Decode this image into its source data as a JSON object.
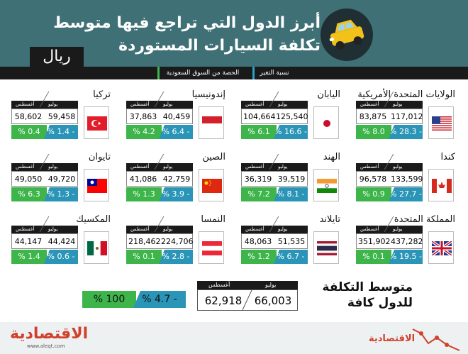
{
  "header": {
    "title_line1": "أبرز الدول التي تراجع فيها متوسط",
    "title_line2": "تكلفة السيارات المستوردة",
    "currency": "ريال"
  },
  "legend": {
    "change": "نسبة التغير",
    "share": "الحصة من السوق السعودية"
  },
  "months": {
    "july": "يوليو",
    "august": "أغسطس"
  },
  "chart_data": {
    "type": "table",
    "columns": [
      "يوليو",
      "أغسطس",
      "نسبة التغير",
      "الحصة من السوق السعودية"
    ],
    "countries": [
      {
        "name": "الولايات المتحدة الأمريكية",
        "flag": "usa",
        "july": "117,012",
        "august": "83,875",
        "change": "- 28.3 %",
        "share": "8.0 %"
      },
      {
        "name": "اليابان",
        "flag": "japan",
        "july": "125,540",
        "august": "104,664",
        "change": "- 16.6 %",
        "share": "6.1 %"
      },
      {
        "name": "إندونيسيا",
        "flag": "indonesia",
        "july": "40,459",
        "august": "37,863",
        "change": "- 6.4 %",
        "share": "4.2 %"
      },
      {
        "name": "تركيا",
        "flag": "turkey",
        "july": "59,458",
        "august": "58,602",
        "change": "- 1.4 %",
        "share": "0.4 %"
      },
      {
        "name": "كندا",
        "flag": "canada",
        "july": "133,599",
        "august": "96,578",
        "change": "- 27.7 %",
        "share": "0.9 %"
      },
      {
        "name": "الهند",
        "flag": "india",
        "july": "39,519",
        "august": "36,319",
        "change": "- 8.1 %",
        "share": "7.2 %"
      },
      {
        "name": "الصين",
        "flag": "china",
        "july": "42,759",
        "august": "41,086",
        "change": "- 3.9 %",
        "share": "1.3 %"
      },
      {
        "name": "تايوان",
        "flag": "taiwan",
        "july": "49,720",
        "august": "49,050",
        "change": "- 1.3 %",
        "share": "6.3 %"
      },
      {
        "name": "المملكة المتحدة",
        "flag": "uk",
        "july": "437,282",
        "august": "351,902",
        "change": "- 19.5 %",
        "share": "0.1 %"
      },
      {
        "name": "تايلاند",
        "flag": "thailand",
        "july": "51,535",
        "august": "48,063",
        "change": "- 6.7 %",
        "share": "1.2 %"
      },
      {
        "name": "النمسا",
        "flag": "austria",
        "july": "224,706",
        "august": "218,462",
        "change": "- 2.8 %",
        "share": "0.1 %"
      },
      {
        "name": "المكسيك",
        "flag": "mexico",
        "july": "44,424",
        "august": "44,147",
        "change": "- 0.6 %",
        "share": "1.4 %"
      }
    ],
    "average": {
      "title_line1": "متوسط التكلفة",
      "title_line2": "للدول كافة",
      "july": "66,003",
      "august": "62,918",
      "change": "- 4.7 %",
      "share": "100 %"
    }
  },
  "footer": {
    "logo_left": "الاقتصادية",
    "logo_right": "الاقتصادية",
    "url": "www.aleqt.com"
  },
  "colors": {
    "header_bg": "#3f7076",
    "change": "#2b95b8",
    "share": "#3db54a",
    "logo": "#d0402b"
  }
}
